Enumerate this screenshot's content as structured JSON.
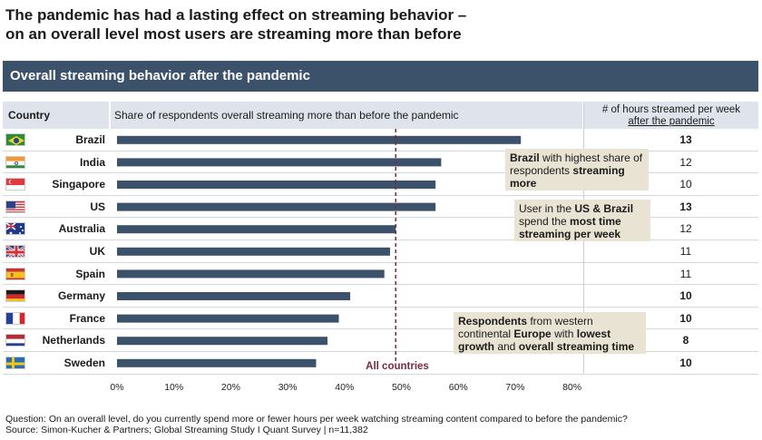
{
  "headline": {
    "line1": "The pandemic has had a lasting effect on streaming behavior –",
    "line2": "on an overall level most users are streaming more than before"
  },
  "subheader": "Overall streaming behavior after the pandemic",
  "columns": {
    "country": "Country",
    "share": "Share of respondents overall streaming more than before the pandemic",
    "hours_line1": "# of hours streamed per week",
    "hours_line2": "after the pandemic"
  },
  "callouts": {
    "brazil": [
      {
        "text": "Brazil",
        "bold": true
      },
      {
        "text": " with highest share of respondents ",
        "bold": false
      },
      {
        "text": "streaming more",
        "bold": true
      }
    ],
    "us": [
      {
        "text": "User in the ",
        "bold": false
      },
      {
        "text": "US & Brazil",
        "bold": true
      },
      {
        "text": " spend the ",
        "bold": false
      },
      {
        "text": "most time streaming per week",
        "bold": true
      }
    ],
    "europe": [
      {
        "text": "Respondents",
        "bold": true
      },
      {
        "text": " from western continental ",
        "bold": false
      },
      {
        "text": "Europe",
        "bold": true
      },
      {
        "text": " with ",
        "bold": false
      },
      {
        "text": "lowest growth",
        "bold": true
      },
      {
        "text": " and ",
        "bold": false
      },
      {
        "text": "overall streaming time",
        "bold": true
      }
    ]
  },
  "reference_label": "All countries",
  "footer": {
    "question": "Question: On an overall level, do you currently spend more or fewer hours per week watching streaming content compared to before the pandemic?",
    "source": "Source: Simon-Kucher & Partners; Global Streaming Study I Quant Survey | n=11,382"
  },
  "colors": {
    "bar": "#3c526b",
    "reference_line": "#7a2a3e",
    "header_band": "#3c526b",
    "column_header_bg": "#dfe4ec",
    "callout_bg": "#e9e3d4"
  },
  "chart_data": {
    "type": "bar",
    "orientation": "horizontal",
    "categories": [
      "Brazil",
      "India",
      "Singapore",
      "US",
      "Australia",
      "UK",
      "Spain",
      "Germany",
      "France",
      "Netherlands",
      "Sweden"
    ],
    "flags": [
      "brazil-flag",
      "india-flag",
      "singapore-flag",
      "us-flag",
      "australia-flag",
      "uk-flag",
      "spain-flag",
      "germany-flag",
      "france-flag",
      "netherlands-flag",
      "sweden-flag"
    ],
    "values": [
      71,
      57,
      56,
      56,
      49,
      48,
      47,
      41,
      39,
      37,
      35
    ],
    "hours": [
      {
        "value": "13",
        "bold": true
      },
      {
        "value": "12",
        "bold": false
      },
      {
        "value": "10",
        "bold": false
      },
      {
        "value": "13",
        "bold": true
      },
      {
        "value": "12",
        "bold": false
      },
      {
        "value": "11",
        "bold": false
      },
      {
        "value": "11",
        "bold": false
      },
      {
        "value": "10",
        "bold": true
      },
      {
        "value": "10",
        "bold": true
      },
      {
        "value": "8",
        "bold": true
      },
      {
        "value": "10",
        "bold": true
      }
    ],
    "reference_value": 49,
    "xlim": [
      0,
      80
    ],
    "xticks": [
      0,
      10,
      20,
      30,
      40,
      50,
      60,
      70,
      80
    ],
    "xtick_labels": [
      "0%",
      "10%",
      "20%",
      "30%",
      "40%",
      "50%",
      "60%",
      "70%",
      "80%"
    ],
    "grid": false
  }
}
